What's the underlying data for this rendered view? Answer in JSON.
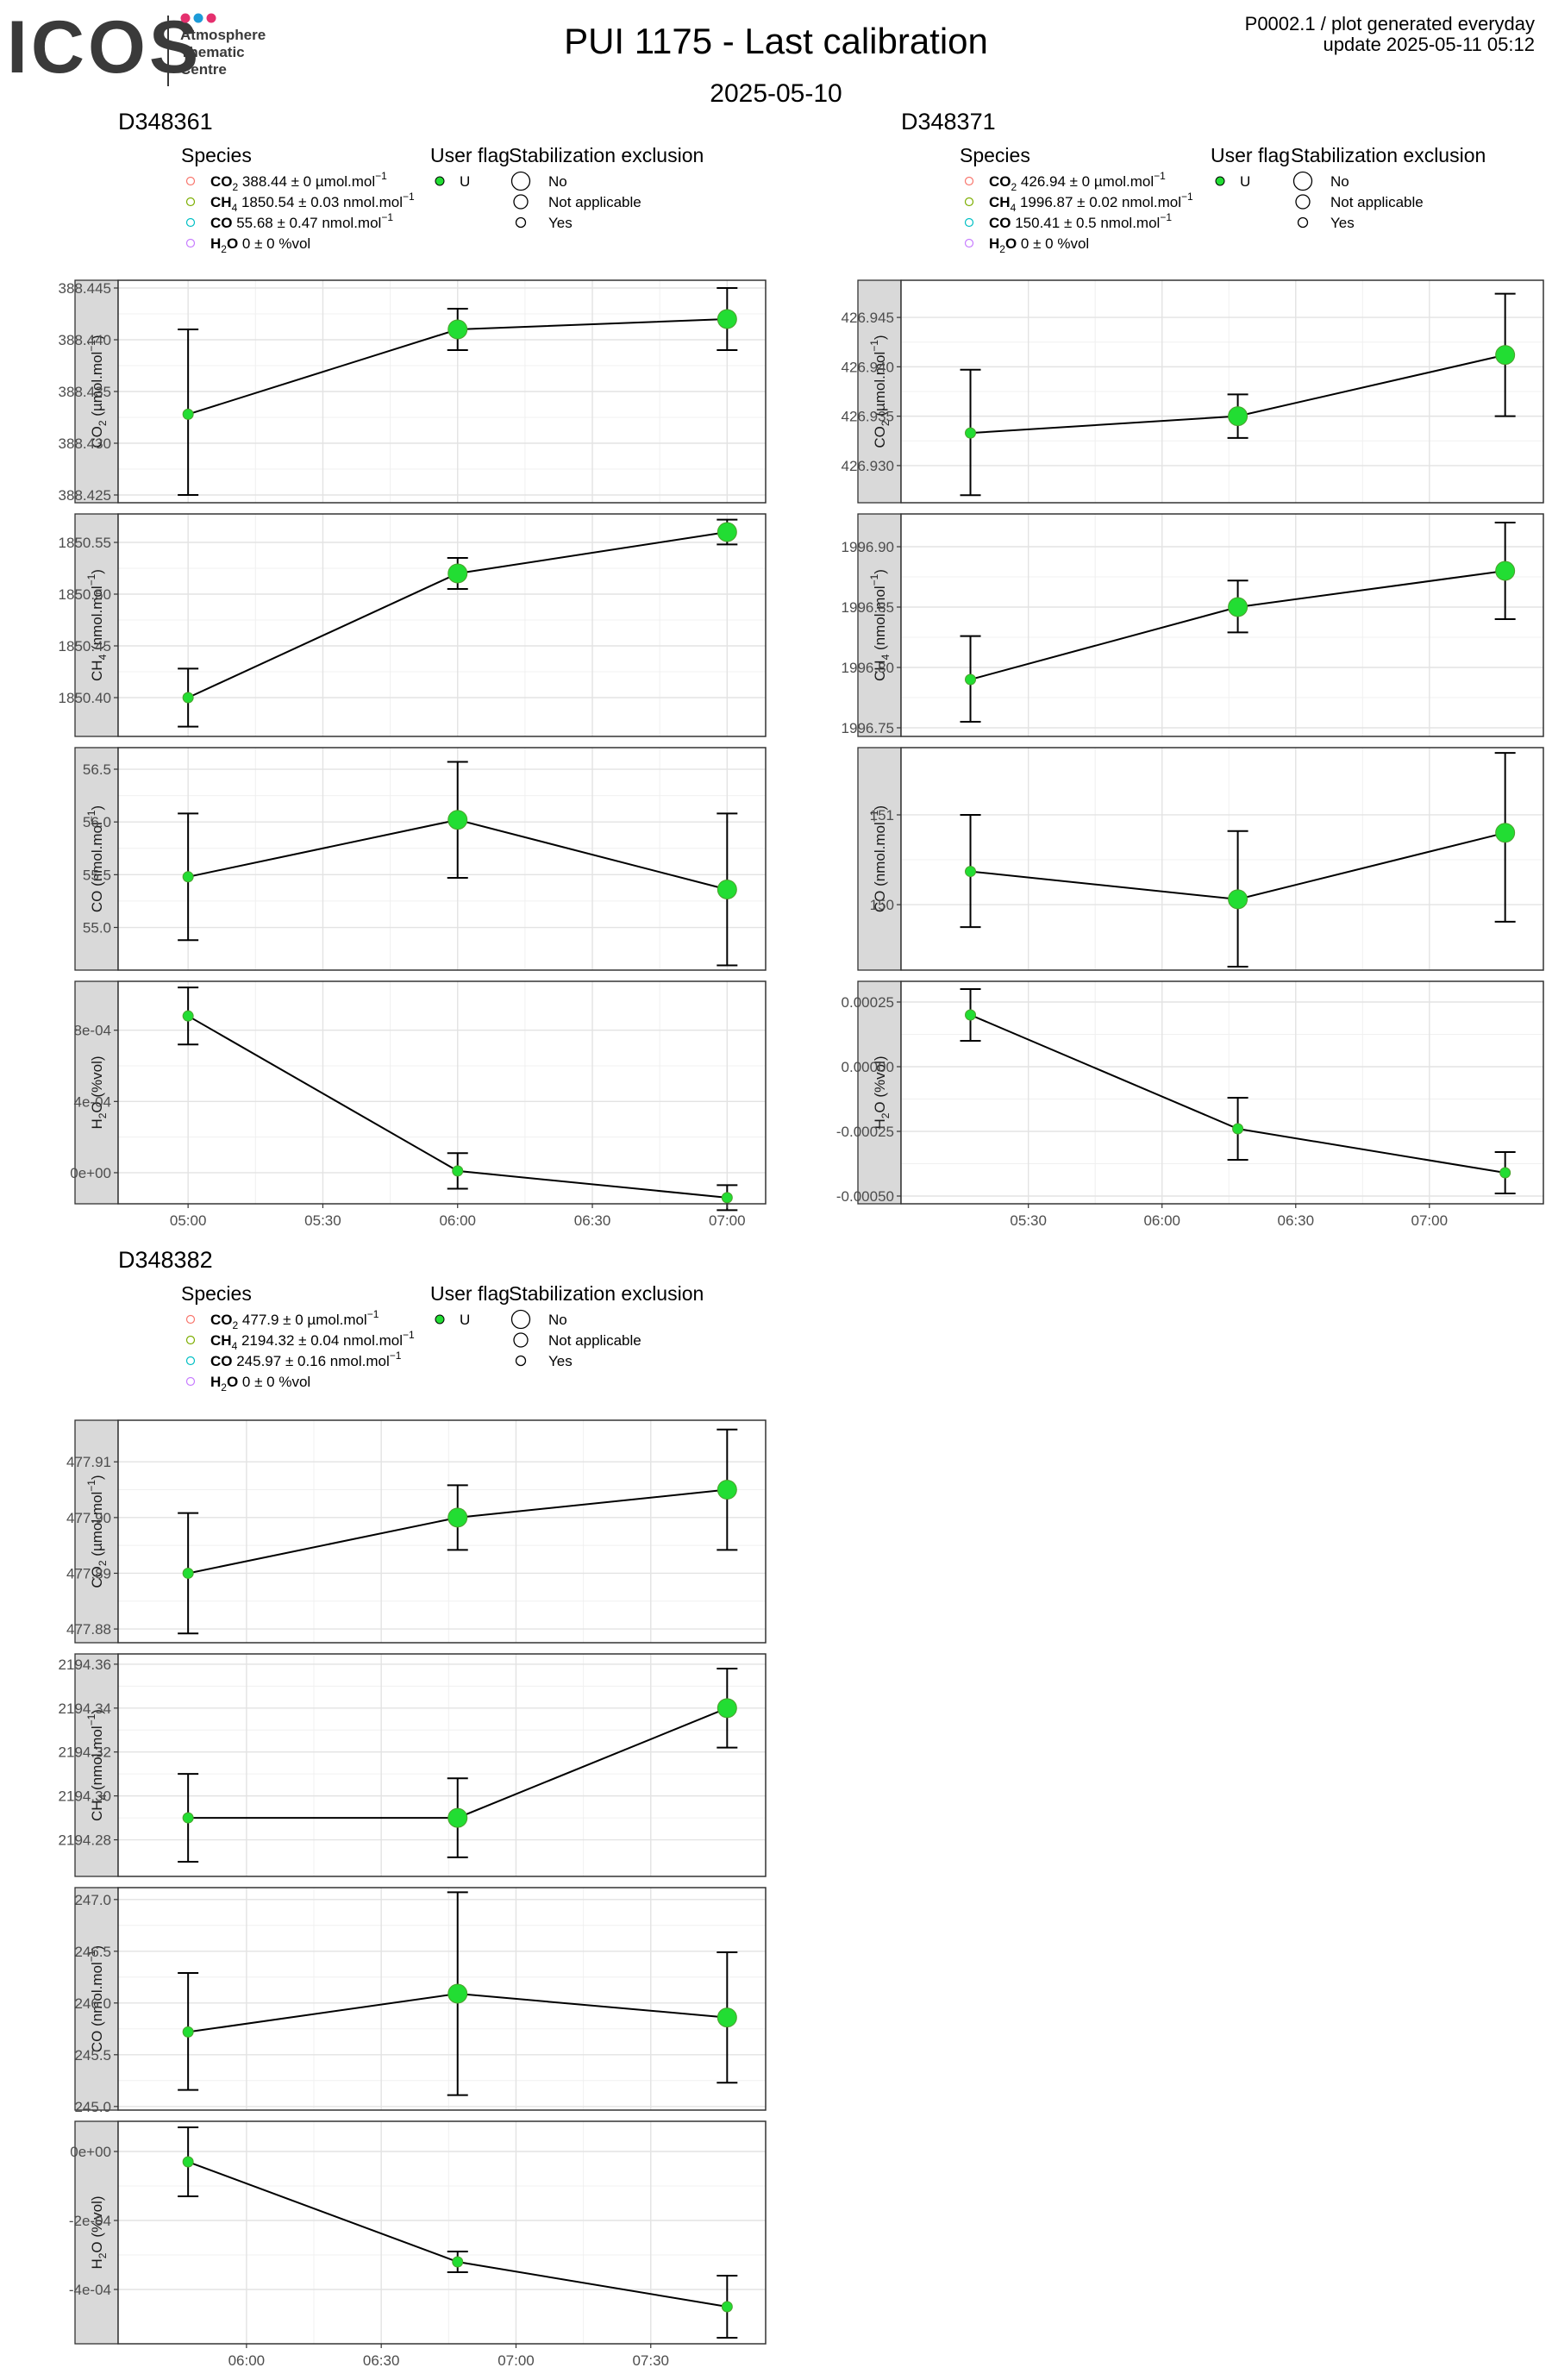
{
  "header": {
    "logo_text": "ICOS",
    "logo_sub": [
      "Atmosphere",
      "Thematic",
      "Centre"
    ],
    "title": "PUI 1175 - Last calibration",
    "subtitle": "2025-05-10",
    "info_line1": "P0002.1 / plot generated everyday",
    "info_line2": "update  2025-05-11 05:12"
  },
  "legend_labels": {
    "species_title": "Species",
    "user_flag_title": "User flag",
    "stab_title": "Stabilization exclusion",
    "user_flag_value": "U",
    "stab_no": "No",
    "stab_na": "Not applicable",
    "stab_yes": "Yes"
  },
  "species_colors": {
    "CO2": "#F8766D",
    "CH4": "#7CAE00",
    "CO": "#00BFC4",
    "H2O": "#C77CFF"
  },
  "point_color": "#22dd33",
  "chart_data": [
    {
      "type": "scatter",
      "instrument": "D348361",
      "species_legend": [
        {
          "sp": "CO",
          "sub": "2",
          "val": " 388.44 ± 0 µmol.mol",
          "sup": "−1"
        },
        {
          "sp": "CH",
          "sub": "4",
          "val": " 1850.54 ± 0.03 nmol.mol",
          "sup": "−1"
        },
        {
          "sp": "CO",
          "sub": "",
          "val": " 55.68 ± 0.47 nmol.mol",
          "sup": "−1"
        },
        {
          "sp": "H",
          "sub": "2",
          "sp2": "O",
          "val": " 0 ± 0 %vol",
          "sup": ""
        }
      ],
      "x_ticks": [
        "05:00",
        "05:30",
        "06:00",
        "06:30",
        "07:00"
      ],
      "x_tick_values": [
        0,
        30,
        60,
        90,
        120
      ],
      "xlim": [
        -15,
        128
      ],
      "panels": [
        {
          "strip": [
            "CO",
            "2",
            " (µmol.mol",
            "−1",
            ")"
          ],
          "ylim": [
            388.4245,
            388.4455
          ],
          "ticks": [
            388.425,
            388.43,
            388.435,
            388.44,
            388.445
          ],
          "tick_labels": [
            "388.425",
            "388.430",
            "388.435",
            "388.440",
            "388.445"
          ],
          "points": [
            {
              "x": 0,
              "y": 388.4328,
              "lo": 388.425,
              "hi": 388.441,
              "size": 1
            },
            {
              "x": 60,
              "y": 388.441,
              "lo": 388.439,
              "hi": 388.443,
              "size": 3
            },
            {
              "x": 120,
              "y": 388.442,
              "lo": 388.439,
              "hi": 388.445,
              "size": 3
            }
          ]
        },
        {
          "strip": [
            "CH",
            "4",
            " (nmol.mol",
            "−1",
            ")"
          ],
          "ylim": [
            1850.365,
            1850.575
          ],
          "ticks": [
            1850.4,
            1850.45,
            1850.5,
            1850.55
          ],
          "tick_labels": [
            "1850.40",
            "1850.45",
            "1850.50",
            "1850.55"
          ],
          "points": [
            {
              "x": 0,
              "y": 1850.4,
              "lo": 1850.372,
              "hi": 1850.428,
              "size": 1
            },
            {
              "x": 60,
              "y": 1850.52,
              "lo": 1850.505,
              "hi": 1850.535,
              "size": 3
            },
            {
              "x": 120,
              "y": 1850.56,
              "lo": 1850.548,
              "hi": 1850.572,
              "size": 3
            }
          ]
        },
        {
          "strip": [
            "CO",
            "",
            " (nmol.mol",
            "−1",
            ")"
          ],
          "ylim": [
            54.62,
            56.68
          ],
          "ticks": [
            55.0,
            55.5,
            56.0,
            56.5
          ],
          "tick_labels": [
            "55.0",
            "55.5",
            "56.0",
            "56.5"
          ],
          "points": [
            {
              "x": 0,
              "y": 55.48,
              "lo": 54.88,
              "hi": 56.08,
              "size": 1
            },
            {
              "x": 60,
              "y": 56.02,
              "lo": 55.47,
              "hi": 56.57,
              "size": 3
            },
            {
              "x": 120,
              "y": 55.36,
              "lo": 54.64,
              "hi": 56.08,
              "size": 3
            }
          ]
        },
        {
          "strip": [
            "H",
            "2",
            "O (%vol)",
            "",
            ""
          ],
          "ylim": [
            -0.00016,
            0.00106
          ],
          "ticks": [
            0.0,
            0.0004,
            0.0008
          ],
          "tick_labels": [
            "0e+00",
            "4e-04",
            "8e-04"
          ],
          "points": [
            {
              "x": 0,
              "y": 0.00088,
              "lo": 0.00072,
              "hi": 0.00104,
              "size": 1
            },
            {
              "x": 60,
              "y": 1e-05,
              "lo": -9e-05,
              "hi": 0.00011,
              "size": 1
            },
            {
              "x": 120,
              "y": -0.00014,
              "lo": -0.00021,
              "hi": -7e-05,
              "size": 1
            }
          ]
        }
      ]
    },
    {
      "type": "scatter",
      "instrument": "D348371",
      "species_legend": [
        {
          "sp": "CO",
          "sub": "2",
          "val": " 426.94 ± 0 µmol.mol",
          "sup": "−1"
        },
        {
          "sp": "CH",
          "sub": "4",
          "val": " 1996.87 ± 0.02 nmol.mol",
          "sup": "−1"
        },
        {
          "sp": "CO",
          "sub": "",
          "val": " 150.41 ± 0.5 nmol.mol",
          "sup": "−1"
        },
        {
          "sp": "H",
          "sub": "2",
          "sp2": "O",
          "val": " 0 ± 0 %vol",
          "sup": ""
        }
      ],
      "x_ticks": [
        "05:30",
        "06:00",
        "06:30",
        "07:00"
      ],
      "x_tick_values": [
        30,
        60,
        90,
        120
      ],
      "xlim": [
        2,
        145
      ],
      "panels": [
        {
          "strip": [
            "CO",
            "2",
            " (µmol.mol",
            "−1",
            ")"
          ],
          "ylim": [
            426.9265,
            426.9485
          ],
          "ticks": [
            426.93,
            426.935,
            426.94,
            426.945
          ],
          "tick_labels": [
            "426.930",
            "426.935",
            "426.940",
            "426.945"
          ],
          "points": [
            {
              "x": 17,
              "y": 426.9333,
              "lo": 426.927,
              "hi": 426.9397,
              "size": 1
            },
            {
              "x": 77,
              "y": 426.935,
              "lo": 426.9328,
              "hi": 426.9372,
              "size": 3
            },
            {
              "x": 137,
              "y": 426.9412,
              "lo": 426.935,
              "hi": 426.9474,
              "size": 3
            }
          ]
        },
        {
          "strip": [
            "CH",
            "4",
            " (nmol.mol",
            "−1",
            ")"
          ],
          "ylim": [
            1996.745,
            1996.925
          ],
          "ticks": [
            1996.75,
            1996.8,
            1996.85,
            1996.9
          ],
          "tick_labels": [
            "1996.75",
            "1996.80",
            "1996.85",
            "1996.90"
          ],
          "points": [
            {
              "x": 17,
              "y": 1996.79,
              "lo": 1996.755,
              "hi": 1996.826,
              "size": 1
            },
            {
              "x": 77,
              "y": 1996.85,
              "lo": 1996.829,
              "hi": 1996.872,
              "size": 3
            },
            {
              "x": 137,
              "y": 1996.88,
              "lo": 1996.84,
              "hi": 1996.92,
              "size": 3
            }
          ]
        },
        {
          "strip": [
            "CO",
            "",
            " (nmol.mol",
            "−1",
            ")"
          ],
          "ylim": [
            149.3,
            151.72
          ],
          "ticks": [
            150,
            151
          ],
          "tick_labels": [
            "150",
            "151"
          ],
          "points": [
            {
              "x": 17,
              "y": 150.37,
              "lo": 149.75,
              "hi": 151.0,
              "size": 1
            },
            {
              "x": 77,
              "y": 150.06,
              "lo": 149.31,
              "hi": 150.82,
              "size": 3
            },
            {
              "x": 137,
              "y": 150.8,
              "lo": 149.81,
              "hi": 151.69,
              "size": 3
            }
          ]
        },
        {
          "strip": [
            "H",
            "2",
            "O (%vol)",
            "",
            ""
          ],
          "ylim": [
            -0.00052,
            0.00032
          ],
          "ticks": [
            -0.0005,
            -0.00025,
            0.0,
            0.00025
          ],
          "tick_labels": [
            "-0.00050",
            "-0.00025",
            "0.00000",
            "0.00025"
          ],
          "points": [
            {
              "x": 17,
              "y": 0.0002,
              "lo": 0.0001,
              "hi": 0.0003,
              "size": 1
            },
            {
              "x": 77,
              "y": -0.00024,
              "lo": -0.00036,
              "hi": -0.00012,
              "size": 1
            },
            {
              "x": 137,
              "y": -0.00041,
              "lo": -0.00049,
              "hi": -0.00033,
              "size": 1
            }
          ]
        }
      ]
    },
    {
      "type": "scatter",
      "instrument": "D348382",
      "species_legend": [
        {
          "sp": "CO",
          "sub": "2",
          "val": " 477.9 ± 0 µmol.mol",
          "sup": "−1"
        },
        {
          "sp": "CH",
          "sub": "4",
          "val": " 2194.32 ± 0.04 nmol.mol",
          "sup": "−1"
        },
        {
          "sp": "CO",
          "sub": "",
          "val": " 245.97 ± 0.16 nmol.mol",
          "sup": "−1"
        },
        {
          "sp": "H",
          "sub": "2",
          "sp2": "O",
          "val": " 0 ± 0 %vol",
          "sup": ""
        }
      ],
      "x_ticks": [
        "06:00",
        "06:30",
        "07:00",
        "07:30"
      ],
      "x_tick_values": [
        60,
        90,
        120,
        150
      ],
      "xlim": [
        32,
        175
      ],
      "panels": [
        {
          "strip": [
            "CO",
            "2",
            " (µmol.mol",
            "−1",
            ")"
          ],
          "ylim": [
            477.878,
            477.917
          ],
          "ticks": [
            477.88,
            477.89,
            477.9,
            477.91
          ],
          "tick_labels": [
            "477.88",
            "477.89",
            "477.90",
            "477.91"
          ],
          "points": [
            {
              "x": 47,
              "y": 477.89,
              "lo": 477.8792,
              "hi": 477.9008,
              "size": 1
            },
            {
              "x": 107,
              "y": 477.9,
              "lo": 477.8942,
              "hi": 477.9058,
              "size": 3
            },
            {
              "x": 167,
              "y": 477.905,
              "lo": 477.8942,
              "hi": 477.9158,
              "size": 3
            }
          ]
        },
        {
          "strip": [
            "CH",
            "4",
            " (nmol.mol",
            "−1",
            ")"
          ],
          "ylim": [
            2194.2645,
            2194.3635
          ],
          "ticks": [
            2194.28,
            2194.3,
            2194.32,
            2194.34,
            2194.36
          ],
          "tick_labels": [
            "2194.28",
            "2194.30",
            "2194.32",
            "2194.34",
            "2194.36"
          ],
          "points": [
            {
              "x": 47,
              "y": 2194.29,
              "lo": 2194.27,
              "hi": 2194.31,
              "size": 1
            },
            {
              "x": 107,
              "y": 2194.29,
              "lo": 2194.272,
              "hi": 2194.308,
              "size": 3
            },
            {
              "x": 167,
              "y": 2194.34,
              "lo": 2194.322,
              "hi": 2194.358,
              "size": 3
            }
          ]
        },
        {
          "strip": [
            "CO",
            "",
            " (nmol.mol",
            "−1",
            ")"
          ],
          "ylim": [
            244.99,
            247.09
          ],
          "ticks": [
            245.0,
            245.5,
            246.0,
            246.5,
            247.0
          ],
          "tick_labels": [
            "245.0",
            "245.5",
            "246.0",
            "246.5",
            "247.0"
          ],
          "points": [
            {
              "x": 47,
              "y": 245.72,
              "lo": 245.16,
              "hi": 246.29,
              "size": 1
            },
            {
              "x": 107,
              "y": 246.09,
              "lo": 245.11,
              "hi": 247.07,
              "size": 3
            },
            {
              "x": 167,
              "y": 245.86,
              "lo": 245.23,
              "hi": 246.49,
              "size": 3
            }
          ]
        },
        {
          "strip": [
            "H",
            "2",
            "O (%vol)",
            "",
            ""
          ],
          "ylim": [
            -0.00055,
            8e-05
          ],
          "ticks": [
            -0.0004,
            -0.0002,
            0.0
          ],
          "tick_labels": [
            "-4e-04",
            "-2e-04",
            "0e+00"
          ],
          "points": [
            {
              "x": 47,
              "y": -3e-05,
              "lo": -0.00013,
              "hi": 7e-05,
              "size": 1
            },
            {
              "x": 107,
              "y": -0.00032,
              "lo": -0.00035,
              "hi": -0.00029,
              "size": 1
            },
            {
              "x": 167,
              "y": -0.00045,
              "lo": -0.00054,
              "hi": -0.00036,
              "size": 1
            }
          ]
        }
      ]
    }
  ]
}
